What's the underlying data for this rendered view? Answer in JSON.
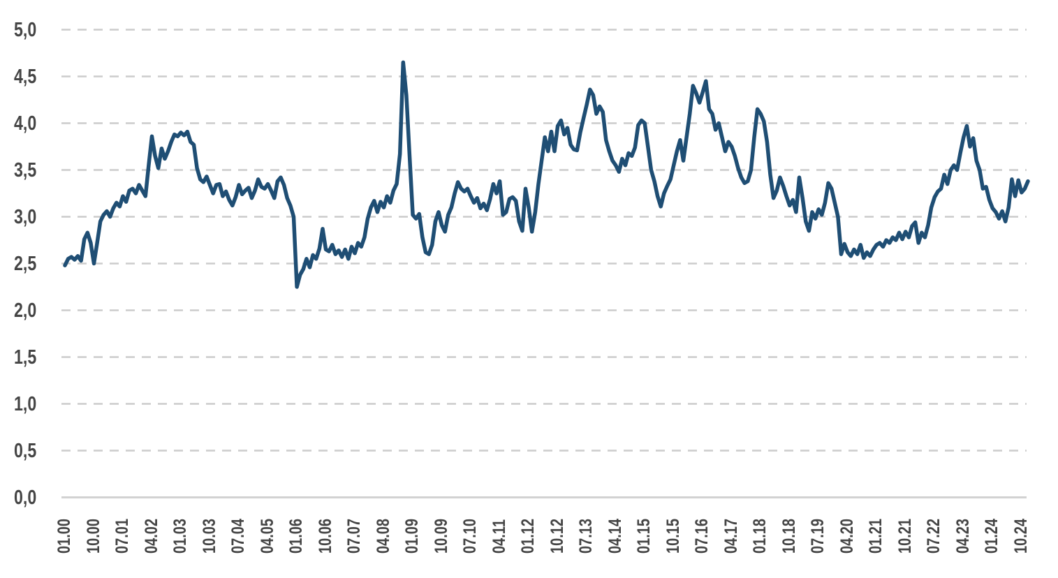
{
  "page": {
    "background_color": "#ffffff",
    "title": ""
  },
  "chart_data": {
    "type": "line",
    "title": "",
    "xlabel": "",
    "ylabel": "",
    "x_start": "01.2000",
    "x_end": "12.2024",
    "x_frequency": "monthly",
    "x_tick_interval_months": 9,
    "x_tick_labels": [
      "01.00",
      "10.00",
      "07.01",
      "04.02",
      "01.03",
      "10.03",
      "07.04",
      "04.05",
      "01.06",
      "10.06",
      "07.07",
      "04.08",
      "01.09",
      "10.09",
      "07.10",
      "04.11",
      "01.12",
      "10.12",
      "07.13",
      "04.14",
      "01.15",
      "10.15",
      "07.16",
      "04.17",
      "01.18",
      "10.18",
      "07.19",
      "04.20",
      "01.21",
      "10.21",
      "07.22",
      "04.23",
      "01.24",
      "10.24"
    ],
    "y_tick_labels": [
      "5,0",
      "4,5",
      "4,0",
      "3,5",
      "3,0",
      "2,5",
      "2,0",
      "1,5",
      "1,0",
      "0,5",
      "0,0"
    ],
    "ylim": [
      0,
      5
    ],
    "y_tick_step": 0.5,
    "grid": "horizontal-dashed",
    "legend": "none",
    "line_color": "#1f4e74",
    "grid_color": "#cccccc",
    "axis_line_color": "#d2d2d2",
    "label_color": "#454545",
    "values": [
      2.48,
      2.55,
      2.57,
      2.54,
      2.58,
      2.53,
      2.76,
      2.83,
      2.72,
      2.5,
      2.72,
      2.95,
      3.02,
      3.06,
      3.0,
      3.09,
      3.15,
      3.11,
      3.22,
      3.16,
      3.28,
      3.3,
      3.25,
      3.34,
      3.28,
      3.22,
      3.55,
      3.86,
      3.65,
      3.52,
      3.73,
      3.62,
      3.7,
      3.8,
      3.88,
      3.86,
      3.9,
      3.87,
      3.91,
      3.8,
      3.77,
      3.52,
      3.4,
      3.37,
      3.43,
      3.34,
      3.25,
      3.34,
      3.35,
      3.22,
      3.27,
      3.18,
      3.12,
      3.21,
      3.34,
      3.24,
      3.28,
      3.31,
      3.2,
      3.28,
      3.4,
      3.32,
      3.3,
      3.35,
      3.28,
      3.2,
      3.38,
      3.42,
      3.34,
      3.2,
      3.12,
      3.0,
      2.25,
      2.38,
      2.44,
      2.55,
      2.46,
      2.59,
      2.55,
      2.66,
      2.87,
      2.65,
      2.63,
      2.7,
      2.6,
      2.64,
      2.57,
      2.65,
      2.55,
      2.68,
      2.61,
      2.72,
      2.68,
      2.78,
      2.98,
      3.1,
      3.17,
      3.05,
      3.16,
      3.1,
      3.22,
      3.15,
      3.28,
      3.35,
      3.67,
      4.65,
      4.3,
      3.65,
      3.02,
      2.98,
      3.03,
      2.78,
      2.62,
      2.6,
      2.7,
      2.95,
      3.05,
      2.91,
      2.84,
      3.02,
      3.1,
      3.25,
      3.37,
      3.3,
      3.27,
      3.3,
      3.22,
      3.15,
      3.2,
      3.09,
      3.14,
      3.07,
      3.19,
      3.35,
      3.25,
      3.38,
      3.02,
      3.05,
      3.19,
      3.21,
      3.17,
      2.95,
      2.85,
      3.3,
      3.1,
      2.84,
      3.05,
      3.35,
      3.6,
      3.85,
      3.7,
      3.91,
      3.7,
      3.97,
      4.03,
      3.88,
      3.95,
      3.77,
      3.72,
      3.71,
      3.9,
      4.05,
      4.2,
      4.36,
      4.3,
      4.1,
      4.18,
      4.12,
      3.82,
      3.7,
      3.6,
      3.55,
      3.48,
      3.62,
      3.55,
      3.68,
      3.65,
      3.74,
      3.98,
      4.03,
      4.0,
      3.75,
      3.5,
      3.38,
      3.22,
      3.11,
      3.25,
      3.33,
      3.4,
      3.55,
      3.7,
      3.82,
      3.6,
      3.85,
      4.1,
      4.4,
      4.32,
      4.22,
      4.33,
      4.45,
      4.15,
      4.1,
      3.93,
      4.0,
      3.85,
      3.7,
      3.8,
      3.75,
      3.65,
      3.52,
      3.42,
      3.36,
      3.38,
      3.5,
      3.85,
      4.15,
      4.1,
      4.02,
      3.8,
      3.45,
      3.2,
      3.28,
      3.42,
      3.33,
      3.22,
      3.12,
      3.18,
      3.05,
      3.42,
      3.2,
      2.95,
      2.85,
      3.05,
      2.98,
      3.08,
      3.02,
      3.15,
      3.36,
      3.3,
      3.15,
      3.0,
      2.6,
      2.71,
      2.62,
      2.58,
      2.65,
      2.6,
      2.7,
      2.56,
      2.62,
      2.58,
      2.65,
      2.7,
      2.72,
      2.68,
      2.75,
      2.72,
      2.78,
      2.75,
      2.83,
      2.76,
      2.84,
      2.78,
      2.9,
      2.94,
      2.72,
      2.83,
      2.78,
      2.91,
      3.1,
      3.21,
      3.27,
      3.3,
      3.45,
      3.35,
      3.5,
      3.55,
      3.5,
      3.68,
      3.85,
      3.97,
      3.75,
      3.84,
      3.6,
      3.5,
      3.3,
      3.32,
      3.18,
      3.09,
      3.05,
      2.98,
      3.06,
      2.95,
      3.1,
      3.4,
      3.22,
      3.39,
      3.26,
      3.3,
      3.38
    ]
  }
}
